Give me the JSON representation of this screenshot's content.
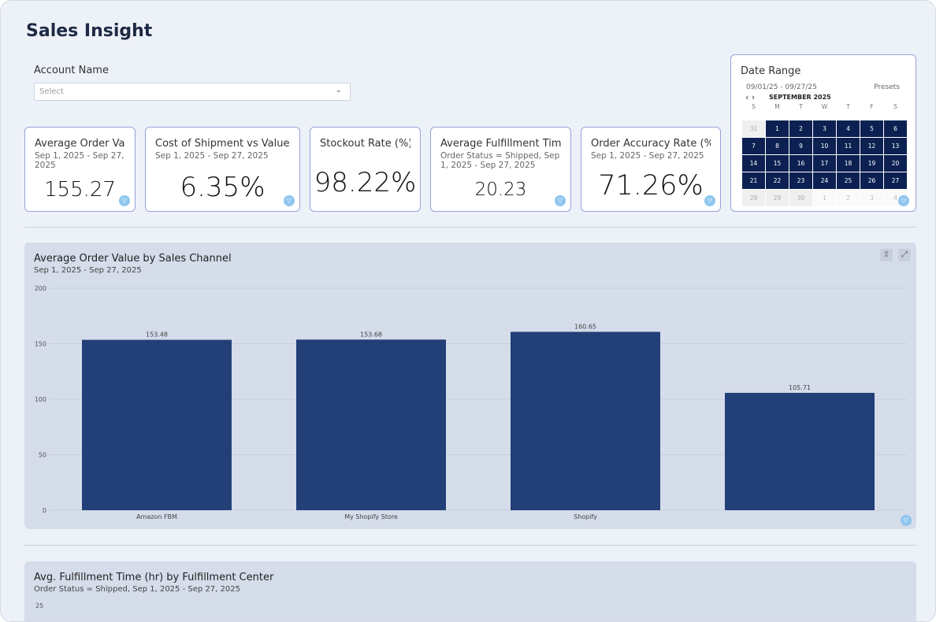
{
  "title": "Sales Insight",
  "account": {
    "label": "Account Name",
    "placeholder": "Select"
  },
  "kpis": [
    {
      "title": "Average Order Value",
      "subtitle": "Sep 1, 2025 - Sep 27, 2025",
      "value": "155.27"
    },
    {
      "title": "Cost of Shipment vs Value of Or",
      "subtitle": "Sep 1, 2025 - Sep 27, 2025",
      "value": "6.35%"
    },
    {
      "title": "Stockout Rate (%)",
      "subtitle": "",
      "value": "98.22%"
    },
    {
      "title": "Average Fulfillment Time (hr",
      "subtitle": "Order Status = Shipped, Sep 1, 2025 - Sep 27, 2025",
      "value": "20.23"
    },
    {
      "title": "Order Accuracy Rate (%)",
      "subtitle": "Sep 1, 2025 - Sep 27, 2025",
      "value": "71.26%"
    }
  ],
  "date_range": {
    "title": "Date Range",
    "range": "09/01/25 - 09/27/25",
    "presets": "Presets",
    "month": "SEPTEMBER 2025",
    "weekdays": [
      "S",
      "M",
      "T",
      "W",
      "T",
      "F",
      "S"
    ],
    "days": [
      "31",
      "1",
      "2",
      "3",
      "4",
      "5",
      "6",
      "7",
      "8",
      "9",
      "10",
      "11",
      "12",
      "13",
      "14",
      "15",
      "16",
      "17",
      "18",
      "19",
      "20",
      "21",
      "22",
      "23",
      "24",
      "25",
      "26",
      "27",
      "28",
      "29",
      "30",
      "1",
      "2",
      "3",
      "4"
    ],
    "selected_from": "1",
    "selected_to": "27"
  },
  "colors": {
    "bar": "#223f78",
    "selected_day": "#0c2152",
    "filter_badge": "#8ec6ef"
  },
  "chart1": {
    "title": "Average Order Value by Sales Channel",
    "subtitle": "Sep 1, 2025 - Sep 27, 2025"
  },
  "chart2": {
    "title": "Avg. Fulfillment Time (hr) by Fulfillment Center",
    "subtitle": "Order Status = Shipped, Sep 1, 2025 - Sep 27, 2025",
    "first_tick": "25"
  },
  "chart_data": {
    "type": "bar",
    "title": "Average Order Value by Sales Channel",
    "categories": [
      "Amazon FBM",
      "My Shopify Store",
      "Shopify",
      ""
    ],
    "values": [
      153.48,
      153.68,
      160.65,
      105.71
    ],
    "value_labels": [
      "153.48",
      "153.68",
      "160.65",
      "105.71"
    ],
    "yticks": [
      "0",
      "50",
      "100",
      "150",
      "200"
    ],
    "ylim": [
      0,
      200
    ],
    "grid": true
  }
}
